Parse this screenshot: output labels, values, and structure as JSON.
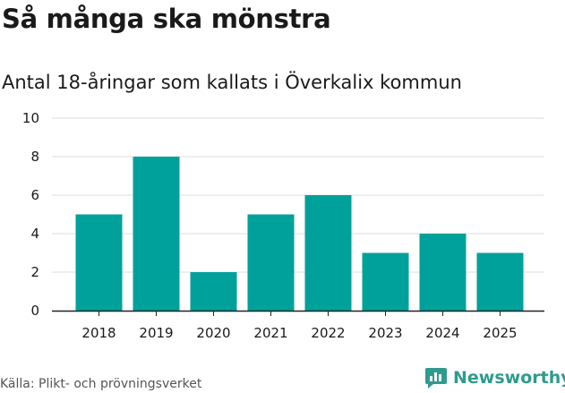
{
  "header": {
    "title": "Så många ska mönstra",
    "subtitle": "Antal 18-åringar som kallats i Överkalix kommun"
  },
  "footer": {
    "source": "Källa: Plikt- och prövningsverket",
    "brand": "Newsworthy",
    "brand_icon": "newsworthy-logo-icon"
  },
  "colors": {
    "bar": "#00a19a",
    "grid": "#dedede",
    "axis": "#222222",
    "brand": "#2e9b8d"
  },
  "chart_data": {
    "type": "bar",
    "title": "Så många ska mönstra",
    "subtitle": "Antal 18-åringar som kallats i Överkalix kommun",
    "xlabel": "",
    "ylabel": "",
    "categories": [
      "2018",
      "2019",
      "2020",
      "2021",
      "2022",
      "2023",
      "2024",
      "2025"
    ],
    "values": [
      5,
      8,
      2,
      5,
      6,
      3,
      4,
      3
    ],
    "ylim": [
      0,
      10
    ],
    "yticks": [
      "0",
      "2",
      "4",
      "6",
      "8",
      "10"
    ],
    "grid": true,
    "legend": "none"
  }
}
